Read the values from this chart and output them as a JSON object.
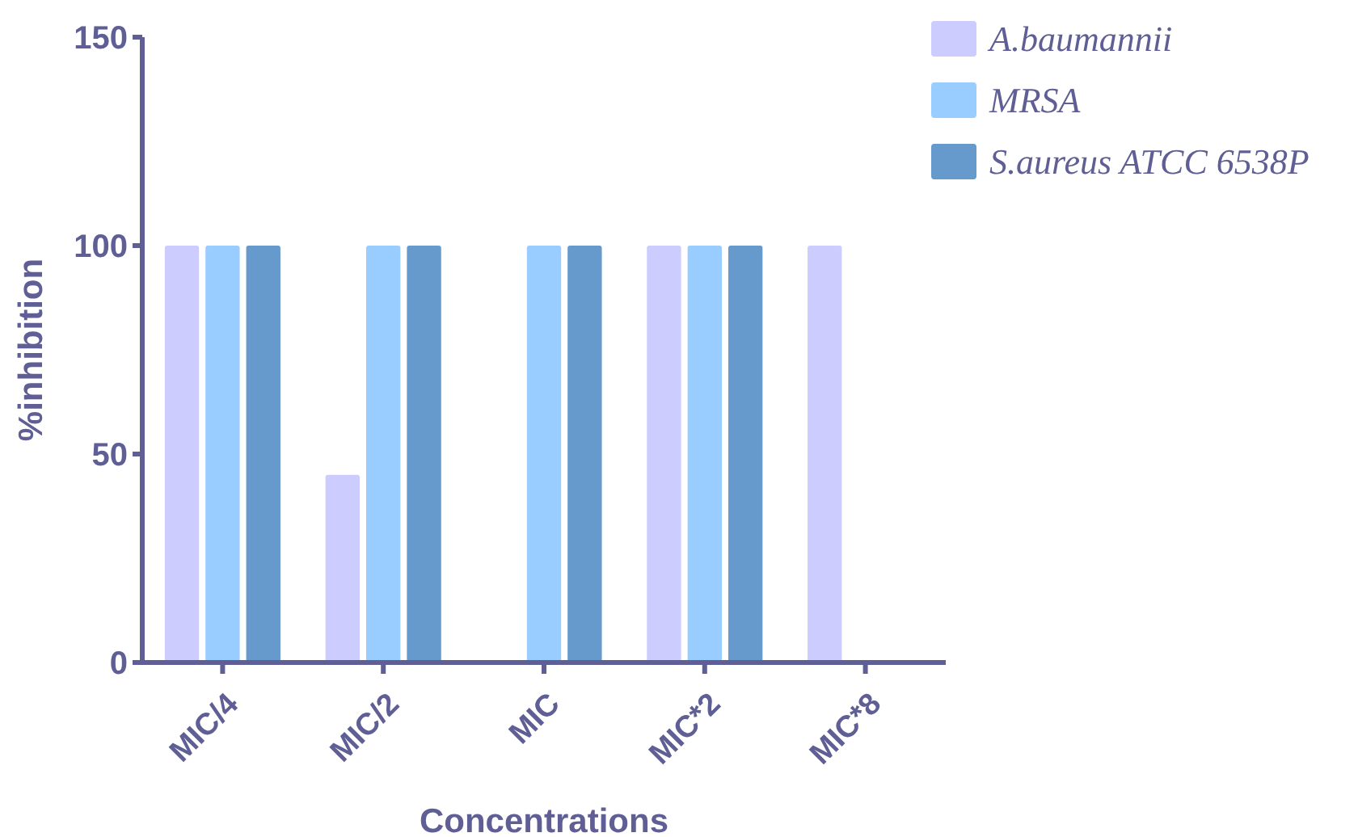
{
  "chart_data": {
    "type": "bar",
    "xlabel": "Concentrations",
    "ylabel": "%inhibition",
    "categories": [
      "MIC/4",
      "MIC/2",
      "MIC",
      "MIC*2",
      "MIC*8"
    ],
    "series": [
      {
        "name": "A.baumannii",
        "color": "#ccccff",
        "values": [
          100,
          45,
          0,
          100,
          100
        ]
      },
      {
        "name": "MRSA",
        "color": "#99ccff",
        "values": [
          100,
          100,
          100,
          100,
          0
        ]
      },
      {
        "name": "S.aureus ATCC 6538P",
        "color": "#6699cc",
        "values": [
          100,
          100,
          100,
          100,
          0
        ]
      }
    ],
    "ylim": [
      0,
      150
    ],
    "yticks": [
      0,
      50,
      100,
      150
    ],
    "grid": false,
    "legend": "top right"
  }
}
